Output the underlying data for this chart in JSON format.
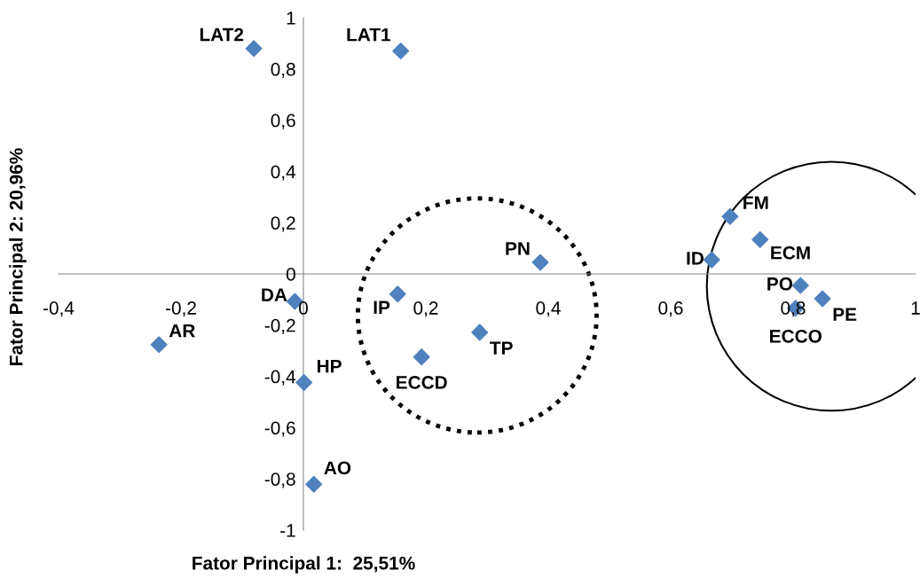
{
  "chart_data": {
    "type": "scatter",
    "xlabel": "Fator Principal 1:  25,51%",
    "ylabel": "Fator Principal 2: 20,96%",
    "x": [
      -0.081,
      0.159,
      0.697,
      0.746,
      0.667,
      0.387,
      0.812,
      0.848,
      0.804,
      -0.014,
      0.154,
      0.288,
      0.193,
      -0.236,
      0.001,
      0.017
    ],
    "series": [
      {
        "color": "#4f81bd",
        "values": [
          0.88,
          0.87,
          0.224,
          0.134,
          0.055,
          0.045,
          -0.045,
          -0.097,
          -0.134,
          -0.107,
          -0.079,
          -0.228,
          -0.324,
          -0.276,
          -0.424,
          -0.821
        ]
      }
    ],
    "annotations": [
      {
        "text": "LAT2",
        "x": -0.081,
        "y": 0.88
      },
      {
        "text": "LAT1",
        "x": 0.159,
        "y": 0.87
      },
      {
        "text": "FM",
        "x": 0.697,
        "y": 0.224
      },
      {
        "text": "ECM",
        "x": 0.746,
        "y": 0.134
      },
      {
        "text": "ID",
        "x": 0.667,
        "y": 0.055
      },
      {
        "text": "PN",
        "x": 0.387,
        "y": 0.045
      },
      {
        "text": "PO",
        "x": 0.812,
        "y": -0.045
      },
      {
        "text": "PE",
        "x": 0.848,
        "y": -0.097
      },
      {
        "text": "ECCO",
        "x": 0.804,
        "y": -0.134
      },
      {
        "text": "DA",
        "x": -0.014,
        "y": -0.107
      },
      {
        "text": "IP",
        "x": 0.154,
        "y": -0.079
      },
      {
        "text": "TP",
        "x": 0.288,
        "y": -0.228
      },
      {
        "text": "ECCD",
        "x": 0.193,
        "y": -0.324
      },
      {
        "text": "AR",
        "x": -0.236,
        "y": -0.276
      },
      {
        "text": "HP",
        "x": 0.001,
        "y": -0.424
      },
      {
        "text": "AO",
        "x": 0.017,
        "y": -0.821
      }
    ],
    "xlim": [
      -0.4,
      1
    ],
    "ylim": [
      -1,
      1
    ],
    "xticks": [
      {
        "value": -0.4,
        "label": "-0,4"
      },
      {
        "value": -0.2,
        "label": "-0,2"
      },
      0,
      {
        "value": 0.2,
        "label": "0,2"
      },
      {
        "value": 0.4,
        "label": "0,4"
      },
      {
        "value": 0.6,
        "label": "0,6"
      },
      {
        "value": 0.8,
        "label": "0,8"
      },
      1
    ],
    "yticks": [
      -1,
      {
        "value": -0.8,
        "label": "-0,8"
      },
      {
        "value": -0.6,
        "label": "-0,6"
      },
      {
        "value": -0.4,
        "label": "-0,4"
      },
      {
        "value": -0.2,
        "label": "-0,2"
      },
      0,
      {
        "value": 0.2,
        "label": "0,2"
      },
      {
        "value": 0.4,
        "label": "0,4"
      },
      {
        "value": 0.6,
        "label": "0,6"
      },
      {
        "value": 0.8,
        "label": "0,8"
      },
      1
    ],
    "marker": "diamond",
    "grid": false,
    "legend": false
  }
}
